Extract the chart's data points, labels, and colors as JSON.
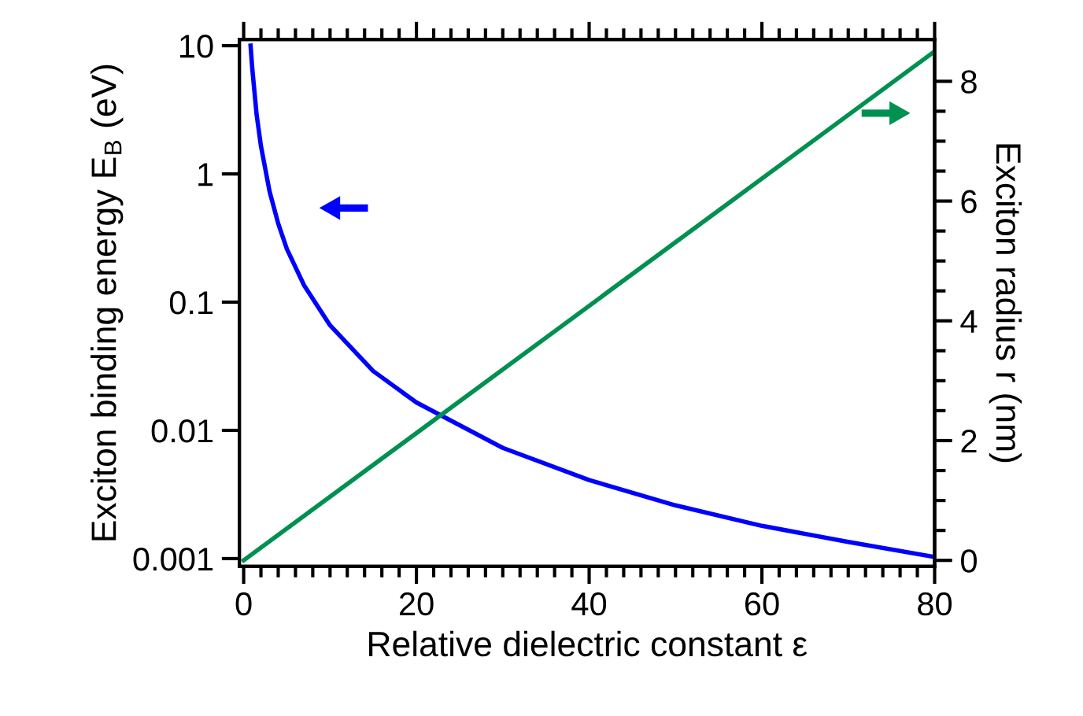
{
  "chart_data": {
    "type": "line",
    "xlabel": "Relative dielectric constant ε",
    "ylabel": "Exciton binding energy E$_{B}$ (eV)",
    "y2label": "Exciton radius r (nm)",
    "xlim": [
      -0.5,
      80
    ],
    "xticks": [
      0,
      20,
      40,
      60,
      80
    ],
    "ylim": [
      0.00087,
      11.2
    ],
    "yticks": [
      0.001,
      0.01,
      0.1,
      1,
      10
    ],
    "y2lim": [
      -0.1,
      8.7
    ],
    "y2ticks": [
      0,
      2,
      4,
      6,
      8
    ],
    "log": "y",
    "grid": false,
    "legend": false,
    "series": [
      {
        "color": "#0000ff",
        "x": [
          0.8,
          1,
          1.5,
          2,
          3,
          4,
          5,
          7,
          10,
          15,
          20,
          30,
          40,
          50,
          60,
          70,
          80
        ],
        "values": [
          10,
          6.6,
          2.9,
          1.65,
          0.73,
          0.41,
          0.26,
          0.135,
          0.066,
          0.029,
          0.0165,
          0.0073,
          0.0041,
          0.0026,
          0.0018,
          0.00135,
          0.00103
        ]
      },
      {
        "color": "#009050",
        "axis": "y2",
        "x": [
          0,
          80
        ],
        "values": [
          0,
          8.5
        ]
      }
    ]
  }
}
